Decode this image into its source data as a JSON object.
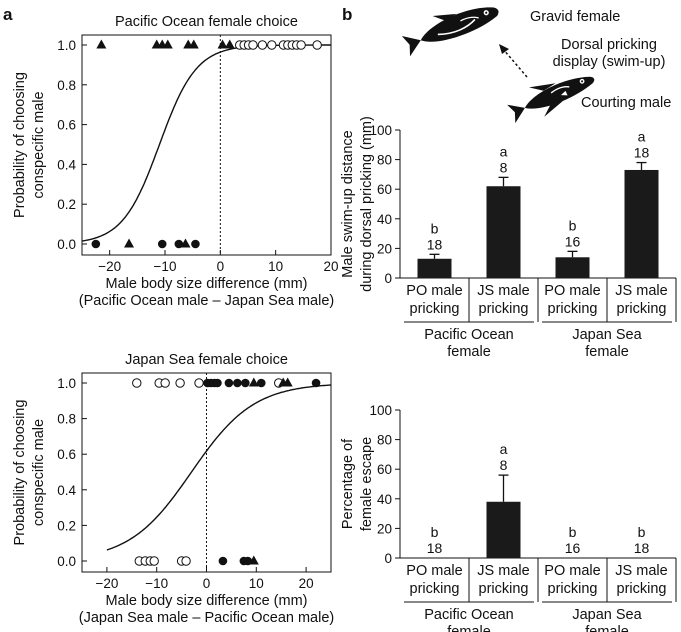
{
  "panel_labels": {
    "a": "a",
    "b": "b"
  },
  "diagram": {
    "gravid_female": "Gravid female",
    "display_line1": "Dorsal pricking",
    "display_line2": "display (swim-up)",
    "courting_male": "Courting male"
  },
  "chart_data": [
    {
      "type": "scatter",
      "title": "Pacific Ocean female choice",
      "xlabel_line1": "Male body size difference (mm)",
      "xlabel_line2": "(Pacific Ocean male – Japan Sea male)",
      "ylabel_line1": "Probability of choosing",
      "ylabel_line2": "conspecific male",
      "xlim": [
        -25,
        20
      ],
      "ylim": [
        0,
        1
      ],
      "xticks": [
        "−20",
        "−10",
        "0",
        "10",
        "20"
      ],
      "yticks": [
        "0.0",
        "0.2",
        "0.4",
        "0.6",
        "0.8",
        "1.0"
      ],
      "zero_line": 0,
      "curve": {
        "type": "logistic",
        "midpoint": -11,
        "slope": 0.3
      },
      "points": [
        {
          "x": -21.5,
          "y": 1,
          "marker": "triangle"
        },
        {
          "x": -11.5,
          "y": 1,
          "marker": "triangle"
        },
        {
          "x": -10.5,
          "y": 1,
          "marker": "triangle"
        },
        {
          "x": -9.5,
          "y": 1,
          "marker": "triangle"
        },
        {
          "x": -5.8,
          "y": 1,
          "marker": "triangle"
        },
        {
          "x": -4.8,
          "y": 1,
          "marker": "triangle"
        },
        {
          "x": 0.4,
          "y": 1,
          "marker": "triangle"
        },
        {
          "x": 1.7,
          "y": 1,
          "marker": "triangle"
        },
        {
          "x": 3.5,
          "y": 1,
          "marker": "open-circle"
        },
        {
          "x": 4.3,
          "y": 1,
          "marker": "open-circle"
        },
        {
          "x": 5.1,
          "y": 1,
          "marker": "open-circle"
        },
        {
          "x": 5.9,
          "y": 1,
          "marker": "open-circle"
        },
        {
          "x": 7.6,
          "y": 1,
          "marker": "open-circle"
        },
        {
          "x": 9.3,
          "y": 1,
          "marker": "open-circle"
        },
        {
          "x": 11.4,
          "y": 1,
          "marker": "open-circle"
        },
        {
          "x": 12.2,
          "y": 1,
          "marker": "open-circle"
        },
        {
          "x": 13.0,
          "y": 1,
          "marker": "open-circle"
        },
        {
          "x": 13.8,
          "y": 1,
          "marker": "open-circle"
        },
        {
          "x": 14.6,
          "y": 1,
          "marker": "open-circle"
        },
        {
          "x": 17.5,
          "y": 1,
          "marker": "open-circle"
        },
        {
          "x": -22.5,
          "y": 0,
          "marker": "filled-circle"
        },
        {
          "x": -16.5,
          "y": 0,
          "marker": "triangle"
        },
        {
          "x": -10.5,
          "y": 0,
          "marker": "filled-circle"
        },
        {
          "x": -7.5,
          "y": 0,
          "marker": "filled-circle"
        },
        {
          "x": -6.3,
          "y": 0,
          "marker": "triangle"
        },
        {
          "x": -4.5,
          "y": 0,
          "marker": "filled-circle"
        }
      ]
    },
    {
      "type": "scatter",
      "title": "Japan Sea female choice",
      "xlabel_line1": "Male body size difference (mm)",
      "xlabel_line2": "(Japan Sea male – Pacific Ocean male)",
      "ylabel_line1": "Probability of choosing",
      "ylabel_line2": "conspecific male",
      "xlim": [
        -25,
        25
      ],
      "ylim": [
        0,
        1
      ],
      "xticks": [
        "−20",
        "−10",
        "0",
        "10",
        "20"
      ],
      "yticks": [
        "0.0",
        "0.2",
        "0.4",
        "0.6",
        "0.8",
        "1.0"
      ],
      "zero_line": 0,
      "curve": {
        "type": "logistic",
        "midpoint": -3,
        "slope": 0.16,
        "xmin": -20,
        "xmax": 25
      },
      "points": [
        {
          "x": -14,
          "y": 1,
          "marker": "open-circle"
        },
        {
          "x": -9.5,
          "y": 1,
          "marker": "open-circle"
        },
        {
          "x": -8.3,
          "y": 1,
          "marker": "open-circle"
        },
        {
          "x": -5.3,
          "y": 1,
          "marker": "open-circle"
        },
        {
          "x": -1.5,
          "y": 1,
          "marker": "open-circle"
        },
        {
          "x": 0.2,
          "y": 1,
          "marker": "filled-circle"
        },
        {
          "x": 0.9,
          "y": 1,
          "marker": "filled-circle"
        },
        {
          "x": 1.6,
          "y": 1,
          "marker": "filled-circle"
        },
        {
          "x": 2.2,
          "y": 1,
          "marker": "filled-circle"
        },
        {
          "x": 4.5,
          "y": 1,
          "marker": "filled-circle"
        },
        {
          "x": 6.2,
          "y": 1,
          "marker": "filled-circle"
        },
        {
          "x": 7.8,
          "y": 1,
          "marker": "filled-circle"
        },
        {
          "x": 9.5,
          "y": 1,
          "marker": "triangle"
        },
        {
          "x": 11.0,
          "y": 1,
          "marker": "filled-circle"
        },
        {
          "x": 14.5,
          "y": 1,
          "marker": "open-circle"
        },
        {
          "x": 15.4,
          "y": 1,
          "marker": "triangle"
        },
        {
          "x": 16.3,
          "y": 1,
          "marker": "triangle"
        },
        {
          "x": 22.0,
          "y": 1,
          "marker": "filled-circle"
        },
        {
          "x": -13.5,
          "y": 0,
          "marker": "open-circle"
        },
        {
          "x": -12.3,
          "y": 0,
          "marker": "open-circle"
        },
        {
          "x": -11.3,
          "y": 0,
          "marker": "open-circle"
        },
        {
          "x": -10.5,
          "y": 0,
          "marker": "open-circle"
        },
        {
          "x": -5.0,
          "y": 0,
          "marker": "open-circle"
        },
        {
          "x": -4.1,
          "y": 0,
          "marker": "open-circle"
        },
        {
          "x": 3.3,
          "y": 0,
          "marker": "filled-circle"
        },
        {
          "x": 7.5,
          "y": 0,
          "marker": "filled-circle"
        },
        {
          "x": 8.3,
          "y": 0,
          "marker": "filled-circle"
        },
        {
          "x": 9.5,
          "y": 0,
          "marker": "triangle"
        }
      ]
    },
    {
      "type": "bar",
      "ylabel_line1": "Male swim-up distance",
      "ylabel_line2": "during dorsal pricking (mm)",
      "ylim": [
        0,
        100
      ],
      "yticks": [
        "0",
        "20",
        "40",
        "60",
        "80",
        "100"
      ],
      "categories": [
        {
          "line1": "PO male",
          "line2": "pricking"
        },
        {
          "line1": "JS male",
          "line2": "pricking"
        },
        {
          "line1": "PO male",
          "line2": "pricking"
        },
        {
          "line1": "JS male",
          "line2": "pricking"
        }
      ],
      "values": [
        13,
        62,
        14,
        73
      ],
      "errors": [
        3,
        6,
        4,
        5
      ],
      "sig_letters": [
        "b",
        "a",
        "b",
        "a"
      ],
      "n": [
        "18",
        "8",
        "16",
        "18"
      ],
      "groups": [
        {
          "line1": "Pacific Ocean",
          "line2": "female"
        },
        {
          "line1": "Japan Sea",
          "line2": "female"
        }
      ],
      "bar_color": "#1a1a1a"
    },
    {
      "type": "bar",
      "ylabel_line1": "Percentage of",
      "ylabel_line2": "female escape",
      "ylim": [
        0,
        100
      ],
      "yticks": [
        "0",
        "20",
        "40",
        "60",
        "80",
        "100"
      ],
      "categories": [
        {
          "line1": "PO male",
          "line2": "pricking"
        },
        {
          "line1": "JS male",
          "line2": "pricking"
        },
        {
          "line1": "PO male",
          "line2": "pricking"
        },
        {
          "line1": "JS male",
          "line2": "pricking"
        }
      ],
      "values": [
        0,
        38,
        0,
        0
      ],
      "errors": [
        0,
        18,
        0,
        0
      ],
      "sig_letters": [
        "b",
        "a",
        "b",
        "b"
      ],
      "n": [
        "18",
        "8",
        "16",
        "18"
      ],
      "groups": [
        {
          "line1": "Pacific Ocean",
          "line2": "female"
        },
        {
          "line1": "Japan Sea",
          "line2": "female"
        }
      ],
      "bar_color": "#1a1a1a"
    }
  ]
}
